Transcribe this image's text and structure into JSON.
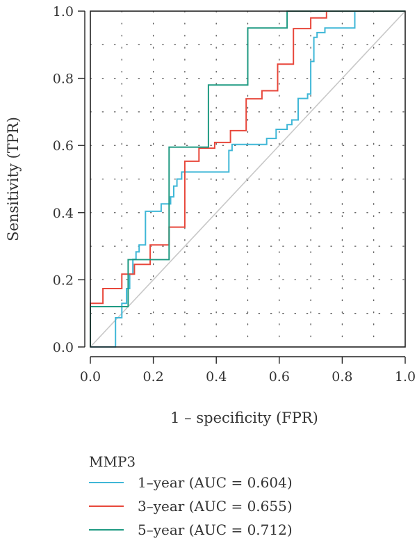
{
  "chart_data": {
    "type": "line",
    "title": "",
    "xlabel": "1 – specificity (FPR)",
    "ylabel": "Sensitivity (TPR)",
    "xlim": [
      0,
      1
    ],
    "ylim": [
      0,
      1
    ],
    "x_ticks": [
      "0.0",
      "0.2",
      "0.4",
      "0.6",
      "0.8",
      "1.0"
    ],
    "y_ticks": [
      "0.0",
      "0.2",
      "0.4",
      "0.6",
      "0.8",
      "1.0"
    ],
    "grid": "dotted",
    "diagonal_reference": true,
    "diagonal_color": "#c8c8c8",
    "legend_title": "MMP3",
    "legend_position": "bottom",
    "series": [
      {
        "name": "1–year (AUC = 0.604)",
        "color": "#3fb7d7",
        "points": [
          [
            0,
            0
          ],
          [
            0.08,
            0
          ],
          [
            0.08,
            0.087
          ],
          [
            0.1,
            0.087
          ],
          [
            0.1,
            0.13
          ],
          [
            0.115,
            0.13
          ],
          [
            0.115,
            0.174
          ],
          [
            0.125,
            0.174
          ],
          [
            0.125,
            0.217
          ],
          [
            0.135,
            0.217
          ],
          [
            0.135,
            0.261
          ],
          [
            0.145,
            0.261
          ],
          [
            0.145,
            0.283
          ],
          [
            0.155,
            0.283
          ],
          [
            0.155,
            0.304
          ],
          [
            0.175,
            0.304
          ],
          [
            0.175,
            0.404
          ],
          [
            0.225,
            0.404
          ],
          [
            0.225,
            0.426
          ],
          [
            0.255,
            0.426
          ],
          [
            0.255,
            0.447
          ],
          [
            0.265,
            0.447
          ],
          [
            0.265,
            0.479
          ],
          [
            0.275,
            0.479
          ],
          [
            0.275,
            0.5
          ],
          [
            0.29,
            0.5
          ],
          [
            0.29,
            0.521
          ],
          [
            0.44,
            0.521
          ],
          [
            0.44,
            0.585
          ],
          [
            0.45,
            0.585
          ],
          [
            0.45,
            0.603
          ],
          [
            0.56,
            0.603
          ],
          [
            0.56,
            0.621
          ],
          [
            0.59,
            0.621
          ],
          [
            0.59,
            0.648
          ],
          [
            0.625,
            0.648
          ],
          [
            0.625,
            0.662
          ],
          [
            0.64,
            0.662
          ],
          [
            0.64,
            0.676
          ],
          [
            0.66,
            0.676
          ],
          [
            0.66,
            0.74
          ],
          [
            0.69,
            0.74
          ],
          [
            0.69,
            0.753
          ],
          [
            0.7,
            0.753
          ],
          [
            0.7,
            0.85
          ],
          [
            0.71,
            0.85
          ],
          [
            0.71,
            0.922
          ],
          [
            0.72,
            0.922
          ],
          [
            0.72,
            0.936
          ],
          [
            0.745,
            0.936
          ],
          [
            0.745,
            0.95
          ],
          [
            0.84,
            0.95
          ],
          [
            0.84,
            1.0
          ],
          [
            1.0,
            1.0
          ]
        ]
      },
      {
        "name": "3–year (AUC = 0.655)",
        "color": "#e8473b",
        "points": [
          [
            0,
            0
          ],
          [
            0,
            0.13
          ],
          [
            0.04,
            0.13
          ],
          [
            0.04,
            0.174
          ],
          [
            0.1,
            0.174
          ],
          [
            0.1,
            0.217
          ],
          [
            0.14,
            0.217
          ],
          [
            0.14,
            0.246
          ],
          [
            0.19,
            0.246
          ],
          [
            0.19,
            0.304
          ],
          [
            0.25,
            0.304
          ],
          [
            0.25,
            0.357
          ],
          [
            0.3,
            0.357
          ],
          [
            0.3,
            0.553
          ],
          [
            0.345,
            0.553
          ],
          [
            0.345,
            0.592
          ],
          [
            0.395,
            0.592
          ],
          [
            0.395,
            0.609
          ],
          [
            0.445,
            0.609
          ],
          [
            0.445,
            0.644
          ],
          [
            0.495,
            0.644
          ],
          [
            0.495,
            0.739
          ],
          [
            0.545,
            0.739
          ],
          [
            0.545,
            0.763
          ],
          [
            0.595,
            0.763
          ],
          [
            0.595,
            0.842
          ],
          [
            0.645,
            0.842
          ],
          [
            0.645,
            0.948
          ],
          [
            0.7,
            0.948
          ],
          [
            0.7,
            0.98
          ],
          [
            0.75,
            0.98
          ],
          [
            0.75,
            1.0
          ],
          [
            1.0,
            1.0
          ]
        ]
      },
      {
        "name": "5–year (AUC = 0.712)",
        "color": "#1f9a82",
        "points": [
          [
            0,
            0
          ],
          [
            0,
            0.12
          ],
          [
            0.12,
            0.12
          ],
          [
            0.12,
            0.26
          ],
          [
            0.25,
            0.26
          ],
          [
            0.25,
            0.595
          ],
          [
            0.375,
            0.595
          ],
          [
            0.375,
            0.78
          ],
          [
            0.5,
            0.78
          ],
          [
            0.5,
            0.95
          ],
          [
            0.625,
            0.95
          ],
          [
            0.625,
            1.0
          ],
          [
            1.0,
            1.0
          ]
        ]
      }
    ]
  }
}
